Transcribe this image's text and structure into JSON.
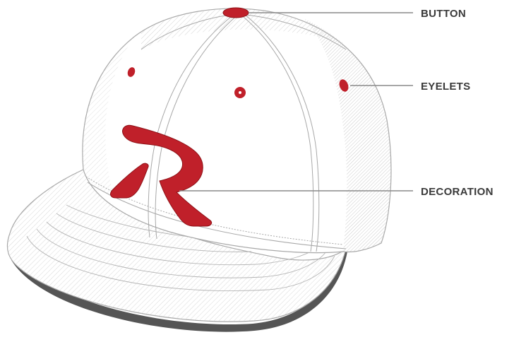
{
  "labels": {
    "button": "BUTTON",
    "eyelets": "EYELETS",
    "decoration": "DECORATION"
  },
  "colors": {
    "accent_red": "#c0202a",
    "outline_gray": "#a8a8a8",
    "hatch_gray": "#c4c4c4",
    "callout_gray": "#8a8a8a",
    "label_text": "#3a3a3a",
    "brim_shadow": "#555555"
  }
}
